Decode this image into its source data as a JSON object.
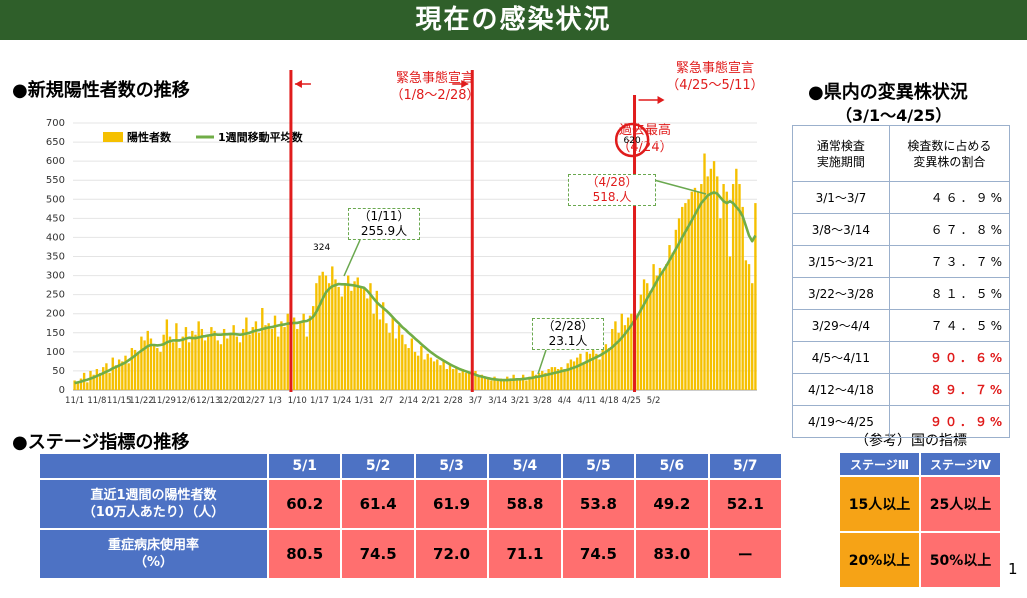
{
  "title": "現在の感染状況",
  "sections": {
    "new_cases": "●新規陽性者数の推移",
    "variant": "●県内の変異株状況",
    "variant_period": "（3/1～4/25）",
    "stage": "●ステージ指標の推移",
    "reference": "（参考）国の指標"
  },
  "emergency": {
    "first_label": "緊急事態宣言",
    "first_range": "（1/8～2/28）",
    "second_label": "緊急事態宣言",
    "second_range": "（4/25～5/11）"
  },
  "annotations": {
    "peak_label": "過去最高",
    "peak_date": "（4/24）",
    "peak_value": "620",
    "label_324": "324",
    "c111_date": "（1/11）",
    "c111_value": "255.9人",
    "c228_date": "（2/28）",
    "c228_value": "23.1人",
    "c428_date": "（4/28）",
    "c428_value": "518.人"
  },
  "chart_data": {
    "type": "bar",
    "title": "新規陽性者数の推移",
    "ylim": [
      0,
      700
    ],
    "y_ticks": [
      0,
      50,
      100,
      150,
      200,
      250,
      300,
      350,
      400,
      450,
      500,
      550,
      600,
      650,
      700
    ],
    "x_tick_labels": [
      "11/1",
      "11/8",
      "11/15",
      "11/22",
      "11/29",
      "12/6",
      "12/13",
      "12/20",
      "12/27",
      "1/3",
      "1/10",
      "1/17",
      "1/24",
      "1/31",
      "2/7",
      "2/14",
      "2/21",
      "2/28",
      "3/7",
      "3/14",
      "3/21",
      "3/28",
      "4/4",
      "4/11",
      "4/18",
      "4/25",
      "5/2"
    ],
    "start_date": "11/1",
    "series": [
      {
        "name": "陽性者数",
        "type": "bar",
        "color": "#f5c000",
        "values": [
          25,
          20,
          30,
          45,
          20,
          50,
          40,
          55,
          45,
          60,
          70,
          45,
          85,
          65,
          80,
          75,
          90,
          70,
          110,
          105,
          95,
          140,
          130,
          155,
          135,
          120,
          110,
          100,
          145,
          185,
          140,
          125,
          175,
          110,
          140,
          165,
          125,
          155,
          145,
          180,
          160,
          130,
          140,
          165,
          155,
          130,
          120,
          160,
          135,
          145,
          170,
          140,
          125,
          160,
          190,
          145,
          165,
          180,
          150,
          215,
          170,
          175,
          160,
          195,
          140,
          180,
          165,
          200,
          195,
          190,
          160,
          175,
          200,
          140,
          195,
          220,
          280,
          300,
          310,
          300,
          280,
          324,
          290,
          270,
          245,
          280,
          300,
          260,
          285,
          295,
          270,
          270,
          240,
          280,
          200,
          260,
          185,
          230,
          175,
          150,
          190,
          135,
          170,
          145,
          120,
          110,
          135,
          100,
          90,
          115,
          80,
          95,
          85,
          75,
          80,
          65,
          75,
          55,
          65,
          55,
          60,
          45,
          55,
          45,
          45,
          40,
          50,
          35,
          40,
          35,
          30,
          25,
          35,
          25,
          30,
          28,
          35,
          30,
          40,
          28,
          30,
          40,
          25,
          35,
          50,
          40,
          45,
          50,
          45,
          55,
          60,
          60,
          55,
          60,
          55,
          70,
          80,
          75,
          85,
          95,
          70,
          100,
          95,
          105,
          95,
          80,
          130,
          120,
          110,
          160,
          180,
          150,
          200,
          170,
          190,
          200,
          210,
          200,
          250,
          290,
          280,
          260,
          330,
          300,
          320,
          310,
          330,
          380,
          360,
          420,
          450,
          480,
          490,
          500,
          520,
          530,
          520,
          540,
          620,
          560,
          580,
          600,
          560,
          450,
          540,
          520,
          350,
          540,
          580,
          540,
          480,
          340,
          330,
          280,
          490
        ]
      },
      {
        "name": "1週間移動平均数",
        "type": "line",
        "color": "#70ad47",
        "values": [
          18,
          20,
          22,
          25,
          27,
          30,
          33,
          37,
          40,
          44,
          48,
          52,
          57,
          60,
          64,
          68,
          72,
          78,
          84,
          90,
          97,
          103,
          109,
          115,
          118,
          118,
          117,
          118,
          120,
          125,
          128,
          130,
          130,
          130,
          132,
          135,
          137,
          136,
          136,
          138,
          140,
          141,
          143,
          144,
          146,
          145,
          145,
          146,
          146,
          147,
          147,
          146,
          145,
          146,
          148,
          150,
          153,
          156,
          157,
          160,
          162,
          164,
          165,
          167,
          169,
          171,
          172,
          174,
          175,
          176,
          176,
          178,
          180,
          181,
          185,
          192,
          205,
          222,
          240,
          256,
          265,
          272,
          275,
          278,
          277,
          277,
          276,
          275,
          274,
          272,
          270,
          268,
          260,
          250,
          240,
          230,
          222,
          215,
          208,
          200,
          191,
          182,
          174,
          165,
          158,
          150,
          143,
          135,
          128,
          120,
          113,
          106,
          99,
          93,
          87,
          82,
          77,
          72,
          67,
          63,
          59,
          55,
          52,
          49,
          46,
          43,
          40,
          37,
          35,
          33,
          31,
          29,
          28,
          27,
          26,
          26,
          26,
          27,
          27,
          28,
          28,
          29,
          30,
          31,
          32,
          34,
          35,
          37,
          39,
          41,
          43,
          45,
          47,
          49,
          51,
          53,
          56,
          59,
          62,
          66,
          70,
          74,
          78,
          82,
          86,
          90,
          95,
          100,
          106,
          112,
          120,
          128,
          137,
          147,
          158,
          170,
          182,
          195,
          210,
          225,
          240,
          255,
          270,
          285,
          300,
          312,
          325,
          340,
          355,
          370,
          385,
          400,
          415,
          430,
          445,
          460,
          475,
          490,
          500,
          510,
          515,
          518,
          515,
          505,
          495,
          490,
          495,
          490,
          480,
          470,
          455,
          430,
          405,
          390,
          405
        ]
      }
    ],
    "legend": [
      "陽性者数",
      "1週間移動平均数"
    ]
  },
  "variant_table": {
    "headers": [
      "通常検査\n実施期間",
      "検査数に占める\n変異株の割合"
    ],
    "rows": [
      {
        "period": "3/1～3/7",
        "pct": "４６．９%",
        "highlight": false
      },
      {
        "period": "3/8～3/14",
        "pct": "６７．８%",
        "highlight": false
      },
      {
        "period": "3/15～3/21",
        "pct": "７３．７%",
        "highlight": false
      },
      {
        "period": "3/22～3/28",
        "pct": "８１．５%",
        "highlight": false
      },
      {
        "period": "3/29～4/4",
        "pct": "７４．５%",
        "highlight": false
      },
      {
        "period": "4/5～4/11",
        "pct": "９０．６%",
        "highlight": true
      },
      {
        "period": "4/12～4/18",
        "pct": "８９．７%",
        "highlight": true
      },
      {
        "period": "4/19～4/25",
        "pct": "９０．９%",
        "highlight": true
      }
    ]
  },
  "stage_table": {
    "dates": [
      "5/1",
      "5/2",
      "5/3",
      "5/4",
      "5/5",
      "5/6",
      "5/7"
    ],
    "rows": [
      {
        "label": "直近1週間の陽性者数\n（10万人あたり）（人）",
        "values": [
          "60.2",
          "61.4",
          "61.9",
          "58.8",
          "53.8",
          "49.2",
          "52.1"
        ]
      },
      {
        "label": "重症病床使用率\n（%）",
        "values": [
          "80.5",
          "74.5",
          "72.0",
          "71.1",
          "74.5",
          "83.0",
          "ー"
        ]
      }
    ]
  },
  "reference_table": {
    "headers": [
      "ステージⅢ",
      "ステージⅣ"
    ],
    "rows": [
      [
        "15人以上",
        "25人以上"
      ],
      [
        "20%以上",
        "50%以上"
      ]
    ]
  },
  "page_number": "1"
}
